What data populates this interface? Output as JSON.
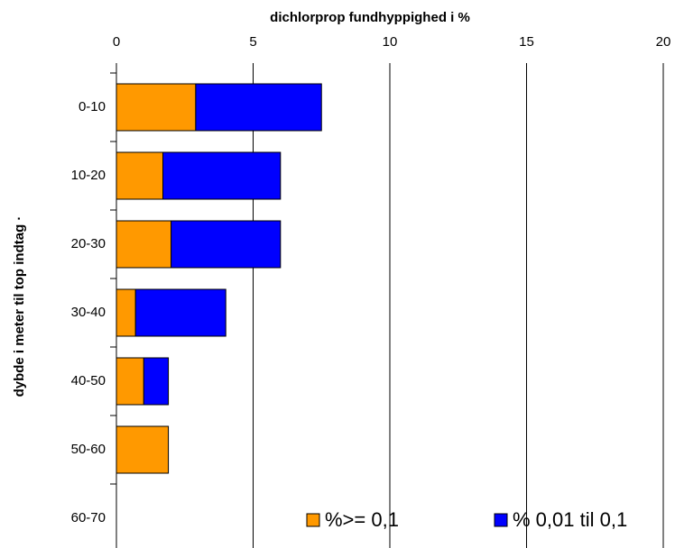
{
  "chart_data": {
    "type": "bar",
    "orientation": "horizontal",
    "stacked": true,
    "title": "dichlorprop fundhyppighed i %",
    "y_label": "dybde i meter til top indtag ·",
    "categories": [
      "0-10",
      "10-20",
      "20-30",
      "30-40",
      "40-50",
      "50-60",
      "60-70"
    ],
    "series": [
      {
        "name": "%>= 0,1",
        "color": "#ff9900",
        "values": [
          2.9,
          1.7,
          2.0,
          0.7,
          1.0,
          1.9,
          0
        ]
      },
      {
        "name": "% 0,01 til 0,1",
        "color": "#0000ff",
        "values": [
          4.6,
          4.3,
          4.0,
          3.3,
          0.9,
          0,
          0
        ]
      }
    ],
    "xlim": [
      0,
      20
    ],
    "xticks": [
      0,
      5,
      10,
      15,
      20
    ],
    "grid": true,
    "legend": "bottom-right"
  }
}
